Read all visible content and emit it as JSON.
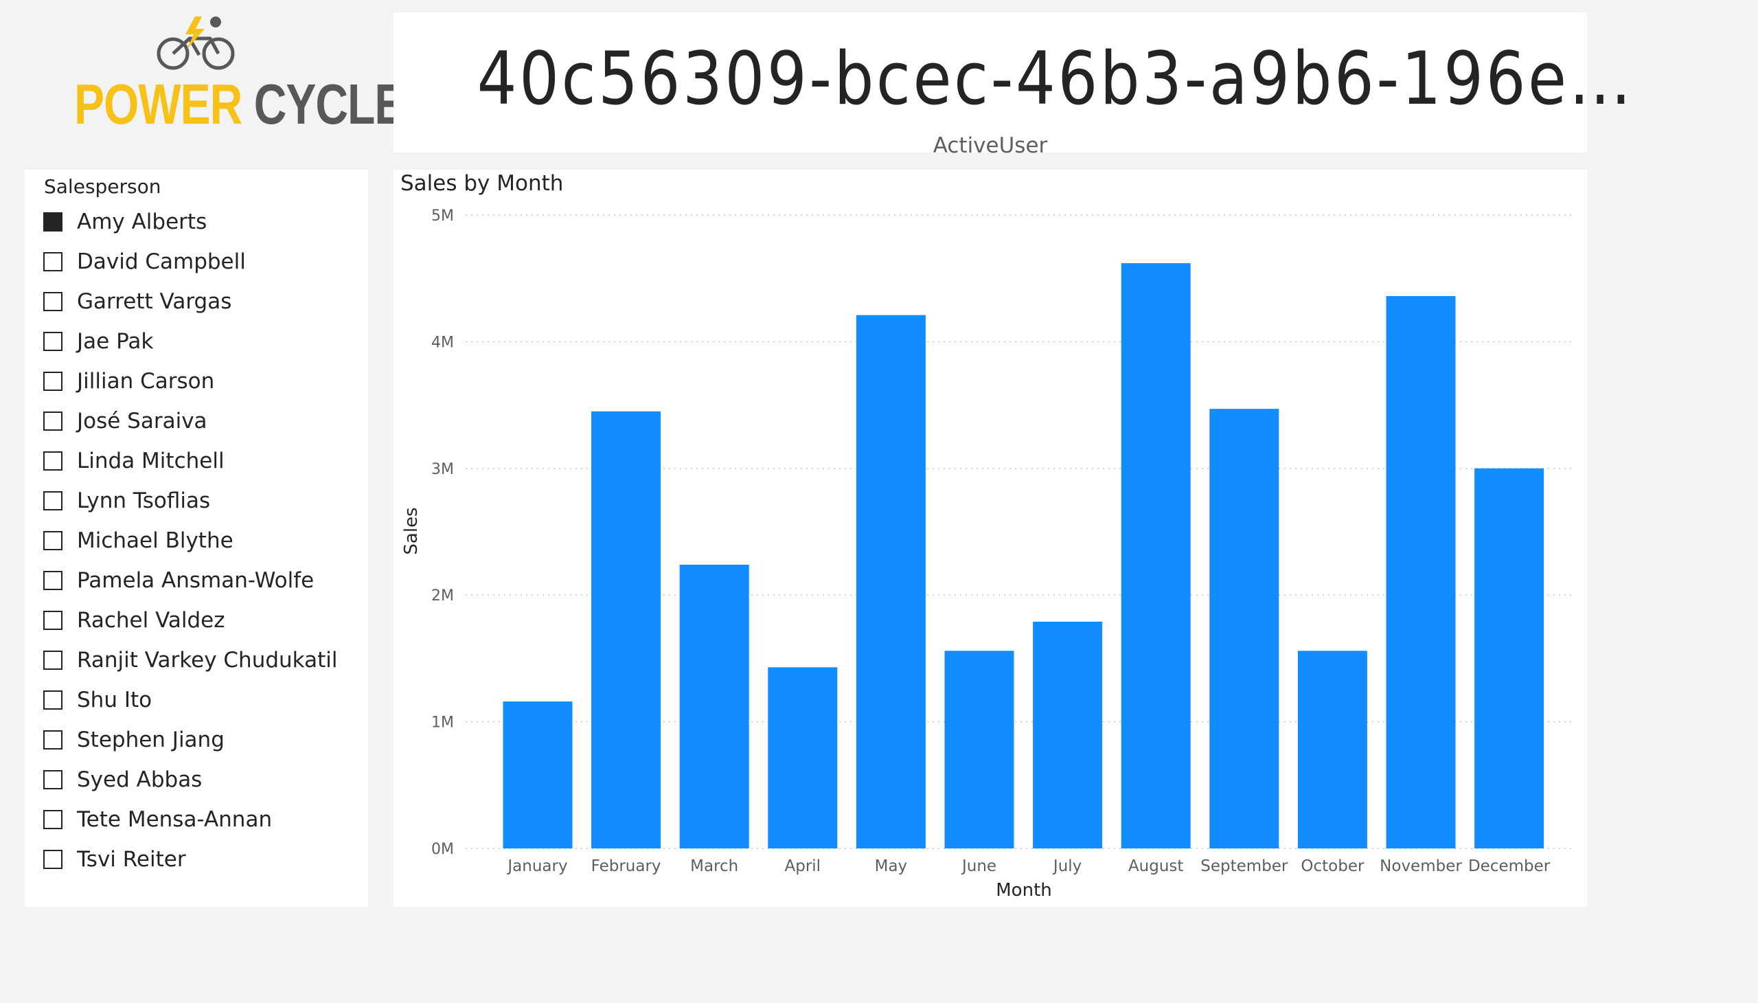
{
  "logo": {
    "icon": "cyclist-lightning-icon",
    "word1": "POWER",
    "word2": "CYCLE",
    "colors": {
      "yellow": "#f6c21a",
      "gray": "#57585a"
    }
  },
  "card": {
    "value": "40c56309-bcec-46b3-a9b6-196e…",
    "label": "ActiveUser"
  },
  "slicer": {
    "title": "Salesperson",
    "items": [
      {
        "label": "Amy Alberts",
        "checked": true
      },
      {
        "label": "David Campbell",
        "checked": false
      },
      {
        "label": "Garrett Vargas",
        "checked": false
      },
      {
        "label": "Jae Pak",
        "checked": false
      },
      {
        "label": "Jillian Carson",
        "checked": false
      },
      {
        "label": "José Saraiva",
        "checked": false
      },
      {
        "label": "Linda Mitchell",
        "checked": false
      },
      {
        "label": "Lynn Tsoflias",
        "checked": false
      },
      {
        "label": "Michael Blythe",
        "checked": false
      },
      {
        "label": "Pamela Ansman-Wolfe",
        "checked": false
      },
      {
        "label": "Rachel Valdez",
        "checked": false
      },
      {
        "label": "Ranjit Varkey Chudukatil",
        "checked": false
      },
      {
        "label": "Shu Ito",
        "checked": false
      },
      {
        "label": "Stephen Jiang",
        "checked": false
      },
      {
        "label": "Syed Abbas",
        "checked": false
      },
      {
        "label": "Tete Mensa-Annan",
        "checked": false
      },
      {
        "label": "Tsvi Reiter",
        "checked": false
      }
    ]
  },
  "chart_data": {
    "type": "bar",
    "title": "Sales by Month",
    "xlabel": "Month",
    "ylabel": "Sales",
    "categories": [
      "January",
      "February",
      "March",
      "April",
      "May",
      "June",
      "July",
      "August",
      "September",
      "October",
      "November",
      "December"
    ],
    "values": [
      1160000,
      3450000,
      2240000,
      1430000,
      4210000,
      1560000,
      1790000,
      4620000,
      3470000,
      1560000,
      4360000,
      3000000
    ],
    "yticks": [
      0,
      1000000,
      2000000,
      3000000,
      4000000,
      5000000
    ],
    "ytick_labels": [
      "0M",
      "1M",
      "2M",
      "3M",
      "4M",
      "5M"
    ],
    "ylim": [
      0,
      5000000
    ],
    "grid": true,
    "bar_color": "#118dff"
  }
}
